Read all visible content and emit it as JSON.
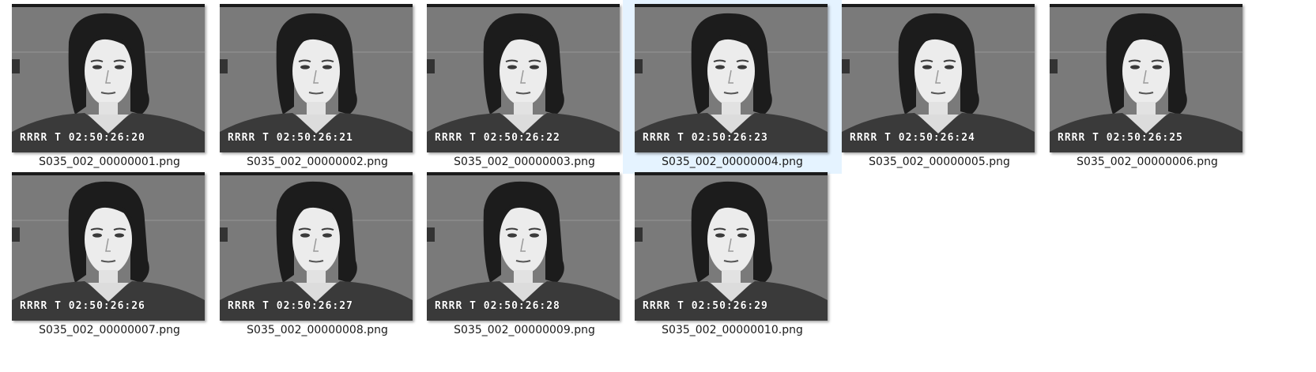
{
  "files": [
    {
      "name": "S035_002_00000001.png",
      "timecode": "02:50:26:20",
      "stamp": "RRRR T",
      "selected": false
    },
    {
      "name": "S035_002_00000002.png",
      "timecode": "02:50:26:21",
      "stamp": "RRRR T",
      "selected": false
    },
    {
      "name": "S035_002_00000003.png",
      "timecode": "02:50:26:22",
      "stamp": "RRRR T",
      "selected": false
    },
    {
      "name": "S035_002_00000004.png",
      "timecode": "02:50:26:23",
      "stamp": "RRRR T",
      "selected": true
    },
    {
      "name": "S035_002_00000005.png",
      "timecode": "02:50:26:24",
      "stamp": "RRRR T",
      "selected": false
    },
    {
      "name": "S035_002_00000006.png",
      "timecode": "02:50:26:25",
      "stamp": "RRRR T",
      "selected": false
    },
    {
      "name": "S035_002_00000007.png",
      "timecode": "02:50:26:26",
      "stamp": "RRRR T",
      "selected": false
    },
    {
      "name": "S035_002_00000008.png",
      "timecode": "02:50:26:27",
      "stamp": "RRRR T",
      "selected": false
    },
    {
      "name": "S035_002_00000009.png",
      "timecode": "02:50:26:28",
      "stamp": "RRRR T",
      "selected": false
    },
    {
      "name": "S035_002_00000010.png",
      "timecode": "02:50:26:29",
      "stamp": "RRRR T",
      "selected": false
    }
  ],
  "colors": {
    "selection": "#e5f3ff",
    "thumbnail_background": "#777777",
    "text": "#1a1a1a"
  }
}
